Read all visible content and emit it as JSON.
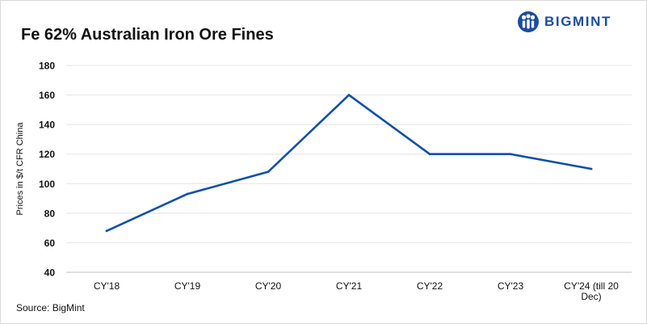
{
  "brand": {
    "name": "BIGMINT",
    "color": "#1b4da0",
    "icon": "bigmint-logo-icon"
  },
  "source_note": "Source: BigMint",
  "chart_data": {
    "type": "line",
    "title": "Fe 62% Australian Iron Ore Fines",
    "xlabel": "",
    "ylabel": "Prices in $/t CFR China",
    "categories": [
      "CY'18",
      "CY'19",
      "CY'20",
      "CY'21",
      "CY'22",
      "CY'23",
      "CY'24 (till 20 Dec)"
    ],
    "series": [
      {
        "values": [
          68,
          93,
          108,
          160,
          120,
          120,
          110
        ],
        "color": "#0f4fa8"
      }
    ],
    "ylim": [
      40,
      180
    ],
    "yticks": [
      40,
      60,
      80,
      100,
      120,
      140,
      160,
      180
    ],
    "grid": true,
    "legend": "none"
  }
}
